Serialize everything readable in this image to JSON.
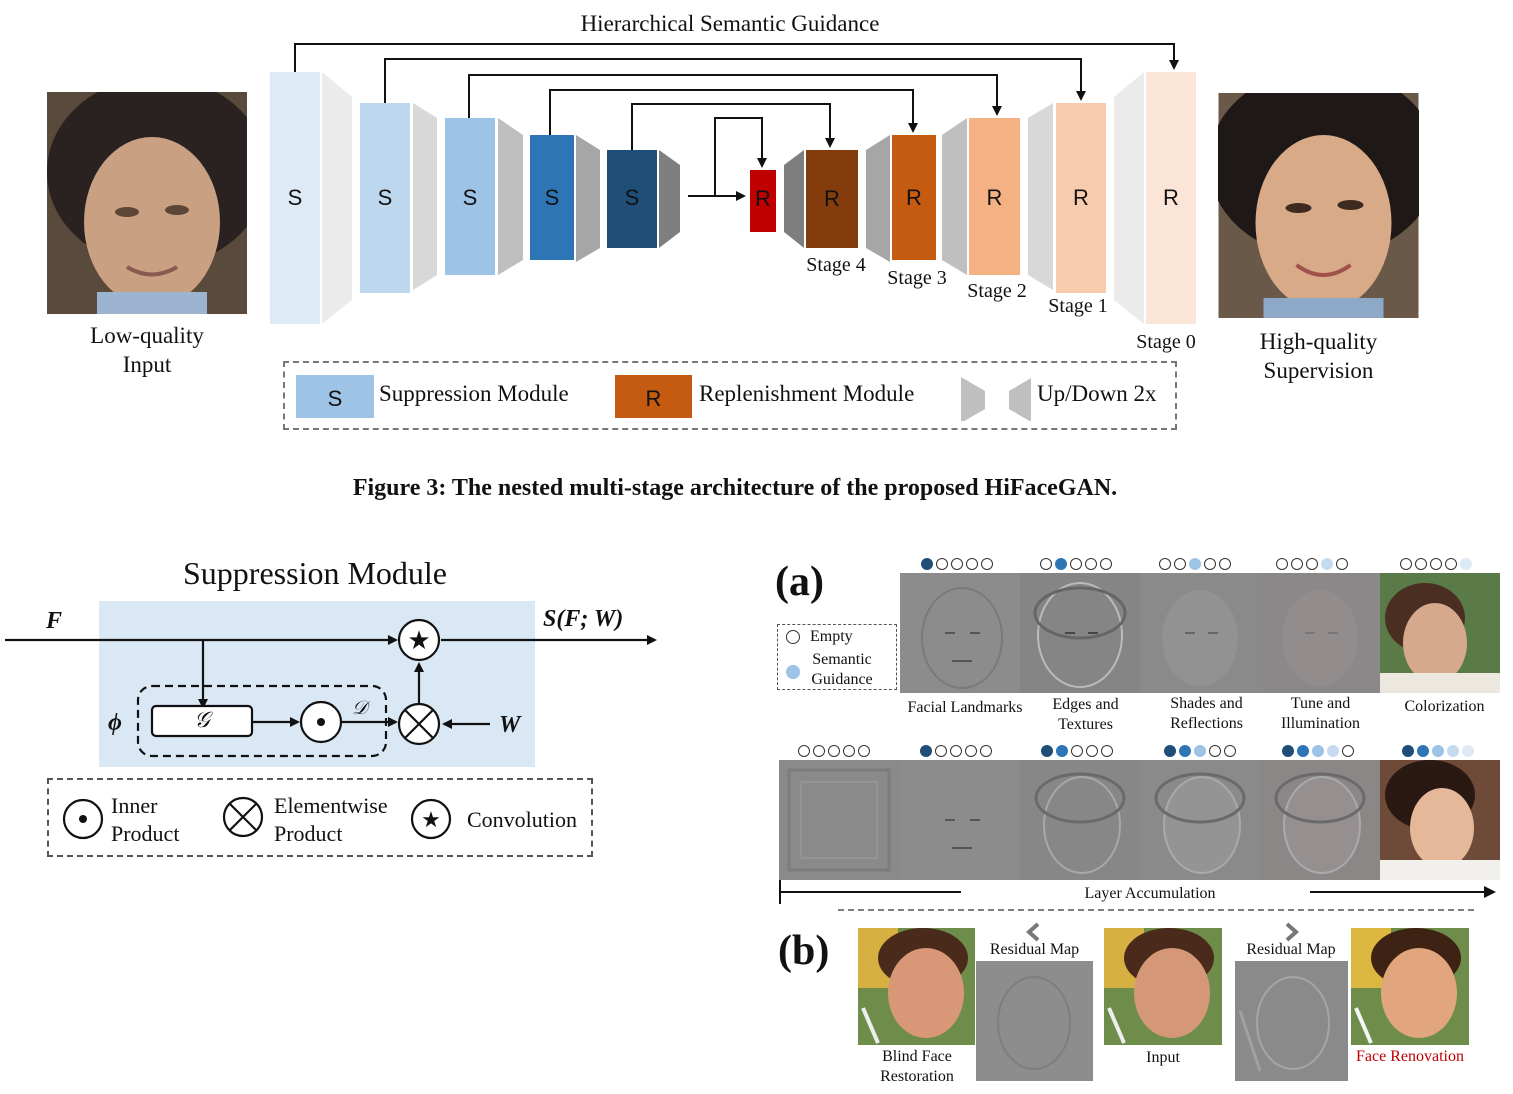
{
  "fig3": {
    "guidance_label": "Hierarchical Semantic Guidance",
    "lq_label_1": "Low-quality",
    "lq_label_2": "Input",
    "hq_label_1": "High-quality",
    "hq_label_2": "Supervision",
    "s_letter": "S",
    "r_letter": "R",
    "stages": [
      "Stage 4",
      "Stage 3",
      "Stage 2",
      "Stage 1",
      "Stage 0"
    ],
    "legend": {
      "s_letter": "S",
      "s_label": "Suppression Module",
      "r_letter": "R",
      "r_label": "Replenishment Module",
      "updown_label": "Up/Down 2x"
    },
    "caption": "Figure 3: The nested multi-stage architecture of the proposed HiFaceGAN."
  },
  "supp": {
    "title": "Suppression Module",
    "input_label": "F",
    "output_label": "S(F; W)",
    "phi": "ϕ",
    "g": "𝒢",
    "d": "𝒟",
    "w": "W",
    "legend": {
      "inner_1": "Inner",
      "inner_2": "Product",
      "elem_1": "Elementwise",
      "elem_2": "Product",
      "conv": "Convolution"
    }
  },
  "right": {
    "a_label": "(a)",
    "b_label": "(b)",
    "legend_empty": "Empty",
    "legend_sem_1": "Semantic",
    "legend_sem_2": "Guidance",
    "row1_captions": [
      [
        "Facial Landmarks",
        ""
      ],
      [
        "Edges and",
        "Textures"
      ],
      [
        "Shades and",
        "Reflections"
      ],
      [
        "Tune and",
        "Illumination"
      ],
      [
        "Colorization",
        ""
      ]
    ],
    "layer_accumulation": "Layer Accumulation",
    "b_residual_1": "Residual Map",
    "b_residual_2": "Residual Map",
    "b_blind_1": "Blind Face",
    "b_blind_2": "Restoration",
    "b_input": "Input",
    "b_renovation": "Face Renovation"
  },
  "colors": {
    "s_blocks": [
      "#deeaf6",
      "#bdd7ee",
      "#9dc3e6",
      "#2e75b6",
      "#1f4e79"
    ],
    "r_blocks": [
      "#c00000",
      "#843c0c",
      "#c55a11",
      "#f4b183",
      "#f8cbad",
      "#fbe5d6"
    ],
    "legend_s": "#9dc3e6",
    "legend_r": "#c55a11",
    "module_bg": "#dae8f5",
    "renovation_red": "#c00000"
  }
}
